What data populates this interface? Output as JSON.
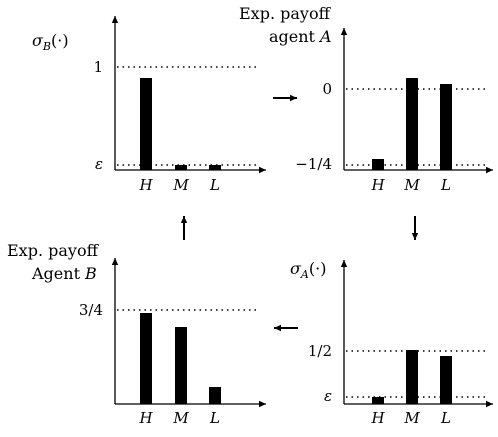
{
  "panels": {
    "top_left": {
      "ylabel": "σ_B(·)",
      "ticks": [
        "1",
        "ε"
      ],
      "categories": [
        "H",
        "M",
        "L"
      ]
    },
    "top_right": {
      "ylabel_line1": "Exp. payoff",
      "ylabel_line2_word": "agent",
      "ylabel_line2_var": "A",
      "ticks": [
        "0",
        "−1/4"
      ],
      "categories": [
        "H",
        "M",
        "L"
      ]
    },
    "bottom_left": {
      "ylabel_line1": "Exp. payoff",
      "ylabel_line2_word": "Agent",
      "ylabel_line2_var": "B",
      "ticks": [
        "3/4"
      ],
      "categories": [
        "H",
        "M",
        "L"
      ]
    },
    "bottom_right": {
      "ylabel": "σ_A(·)",
      "ticks": [
        "1/2",
        "ε"
      ],
      "categories": [
        "H",
        "M",
        "L"
      ]
    }
  },
  "arrows": {
    "top": "right",
    "right": "down",
    "bottom": "left",
    "left": "up"
  }
}
